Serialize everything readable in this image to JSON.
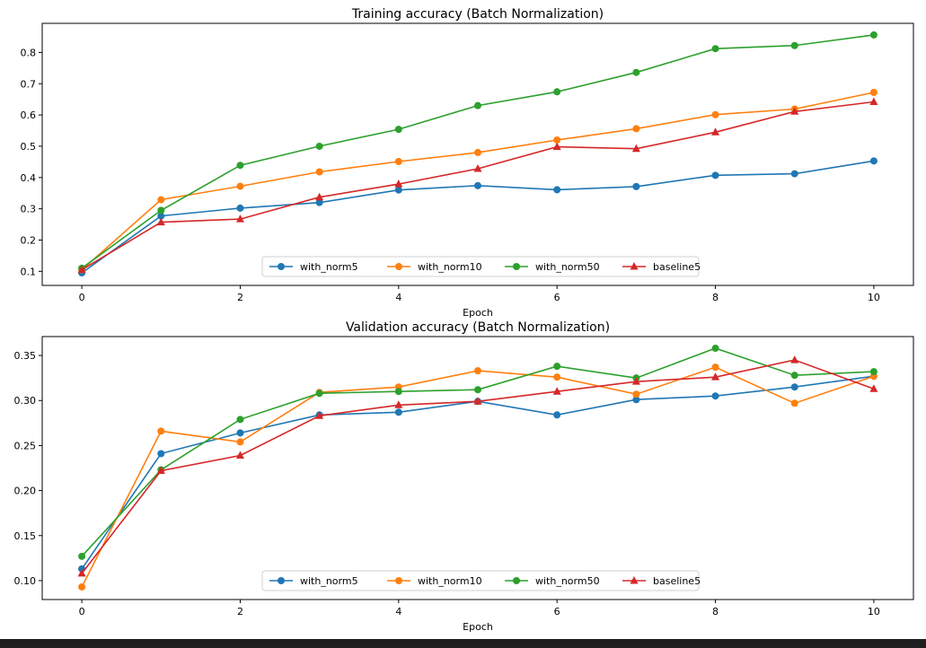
{
  "chart_data": [
    {
      "type": "line",
      "title": "Training accuracy (Batch Normalization)",
      "xlabel": "Epoch",
      "ylabel": "",
      "x": [
        0,
        1,
        2,
        3,
        4,
        5,
        6,
        7,
        8,
        9,
        10
      ],
      "xticks": [
        0,
        2,
        4,
        6,
        8,
        10
      ],
      "xticklabels": [
        "0",
        "2",
        "4",
        "6",
        "8",
        "10"
      ],
      "xlim": [
        -0.5,
        10.5
      ],
      "yticks": [
        0.1,
        0.2,
        0.3,
        0.4,
        0.5,
        0.6,
        0.7,
        0.8
      ],
      "yticklabels": [
        "0.1",
        "0.2",
        "0.3",
        "0.4",
        "0.5",
        "0.6",
        "0.7",
        "0.8"
      ],
      "ylim": [
        0.055,
        0.893
      ],
      "grid": false,
      "legend_position": "lower-center",
      "series": [
        {
          "name": "with_norm5",
          "color": "#1f77b4",
          "marker": "circle",
          "values": [
            0.095,
            0.277,
            0.302,
            0.32,
            0.36,
            0.374,
            0.361,
            0.371,
            0.407,
            0.412,
            0.453
          ]
        },
        {
          "name": "with_norm10",
          "color": "#ff7f0e",
          "marker": "circle",
          "values": [
            0.105,
            0.329,
            0.372,
            0.418,
            0.451,
            0.48,
            0.52,
            0.556,
            0.601,
            0.619,
            0.672
          ]
        },
        {
          "name": "with_norm50",
          "color": "#2ca02c",
          "marker": "circle",
          "values": [
            0.11,
            0.295,
            0.439,
            0.5,
            0.554,
            0.63,
            0.674,
            0.736,
            0.812,
            0.822,
            0.856
          ]
        },
        {
          "name": "baseline5",
          "color": "#d62728",
          "marker": "triangle",
          "values": [
            0.105,
            0.257,
            0.267,
            0.337,
            0.379,
            0.428,
            0.498,
            0.492,
            0.545,
            0.611,
            0.642
          ]
        }
      ]
    },
    {
      "type": "line",
      "title": "Validation accuracy (Batch Normalization)",
      "xlabel": "Epoch",
      "ylabel": "",
      "x": [
        0,
        1,
        2,
        3,
        4,
        5,
        6,
        7,
        8,
        9,
        10
      ],
      "xticks": [
        0,
        2,
        4,
        6,
        8,
        10
      ],
      "xticklabels": [
        "0",
        "2",
        "4",
        "6",
        "8",
        "10"
      ],
      "xlim": [
        -0.5,
        10.5
      ],
      "yticks": [
        0.1,
        0.15,
        0.2,
        0.25,
        0.3,
        0.35
      ],
      "yticklabels": [
        "0.10",
        "0.15",
        "0.20",
        "0.25",
        "0.30",
        "0.35"
      ],
      "ylim": [
        0.079,
        0.371
      ],
      "grid": false,
      "legend_position": "lower-center",
      "series": [
        {
          "name": "with_norm5",
          "color": "#1f77b4",
          "marker": "circle",
          "values": [
            0.113,
            0.241,
            0.264,
            0.284,
            0.287,
            0.299,
            0.284,
            0.301,
            0.305,
            0.315,
            0.327
          ]
        },
        {
          "name": "with_norm10",
          "color": "#ff7f0e",
          "marker": "circle",
          "values": [
            0.093,
            0.266,
            0.254,
            0.309,
            0.315,
            0.333,
            0.326,
            0.307,
            0.337,
            0.297,
            0.327
          ]
        },
        {
          "name": "with_norm50",
          "color": "#2ca02c",
          "marker": "circle",
          "values": [
            0.127,
            0.223,
            0.279,
            0.308,
            0.31,
            0.312,
            0.338,
            0.325,
            0.358,
            0.328,
            0.332
          ]
        },
        {
          "name": "baseline5",
          "color": "#d62728",
          "marker": "triangle",
          "values": [
            0.108,
            0.222,
            0.239,
            0.283,
            0.295,
            0.299,
            0.31,
            0.321,
            0.326,
            0.345,
            0.313
          ]
        }
      ]
    }
  ]
}
